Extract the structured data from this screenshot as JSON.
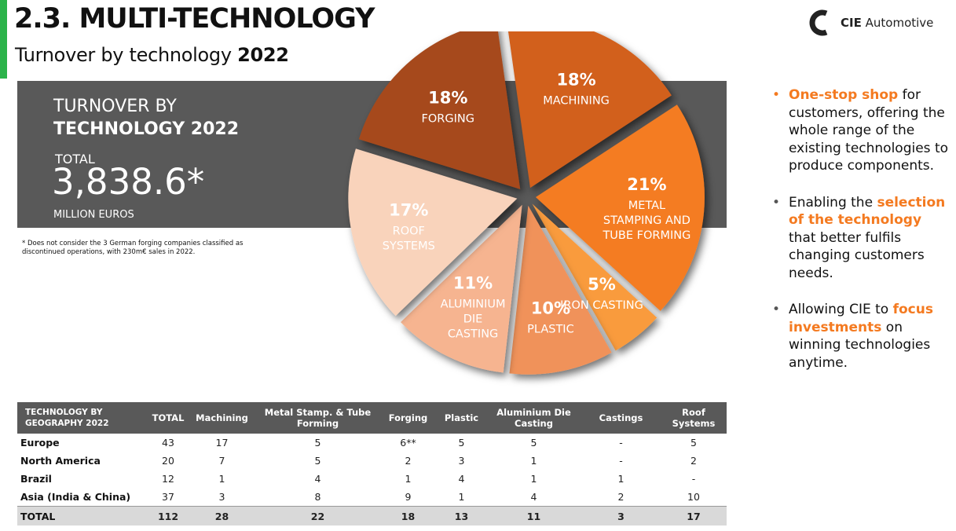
{
  "header": {
    "title": "2.3. MULTI-TECHNOLOGY",
    "subtitle_prefix": "Turnover by technology",
    "subtitle_year": "2022"
  },
  "logo": {
    "brand": "CIE",
    "name": "Automotive"
  },
  "summary": {
    "heading_line1": "TURNOVER BY",
    "heading_line2": "TECHNOLOGY 2022",
    "total_label": "TOTAL",
    "total_value": "3,838.6*",
    "unit": "MILLION EUROS",
    "footnote": "* Does not consider the 3 German forging companies classified as discontinued operations, with 230m€ sales in 2022."
  },
  "chart_data": {
    "type": "pie",
    "slices": [
      {
        "percent_label": "18%",
        "label_lines": [
          "MACHINING"
        ],
        "value": 18,
        "color": "#D2601F"
      },
      {
        "percent_label": "21%",
        "label_lines": [
          "METAL",
          "STAMPING AND",
          "TUBE FORMING"
        ],
        "value": 21,
        "color": "#F47B20"
      },
      {
        "percent_label": "5%",
        "label_lines": [
          "IRON CASTING"
        ],
        "value": 5,
        "color": "#F99B3D"
      },
      {
        "percent_label": "10%",
        "label_lines": [
          "PLASTIC"
        ],
        "value": 10,
        "color": "#F0925A"
      },
      {
        "percent_label": "11%",
        "label_lines": [
          "ALUMINIUM",
          "DIE",
          "CASTING"
        ],
        "value": 11,
        "color": "#F6B490"
      },
      {
        "percent_label": "17%",
        "label_lines": [
          "ROOF",
          "SYSTEMS"
        ],
        "value": 17,
        "color": "#F9D3BB"
      },
      {
        "percent_label": "18%",
        "label_lines": [
          "FORGING"
        ],
        "value": 18,
        "color": "#A64A1C"
      }
    ]
  },
  "bullets": [
    {
      "before": "",
      "highlight": "One-stop shop",
      "after": " for customers, offering the whole range of the existing technologies to produce components."
    },
    {
      "before": "Enabling the ",
      "highlight": "selection of the technology",
      "after": " that better fulfils changing customers needs."
    },
    {
      "before": "Allowing CIE to ",
      "highlight": "focus investments",
      "after": " on winning technologies anytime."
    }
  ],
  "table": {
    "headers": [
      "TECHNOLOGY BY GEOGRAPHY 2022",
      "TOTAL",
      "Machining",
      "Metal Stamp. & Tube Forming",
      "Forging",
      "Plastic",
      "Aluminium Die Casting",
      "Castings",
      "Roof Systems"
    ],
    "rows": [
      [
        "Europe",
        "43",
        "17",
        "5",
        "6**",
        "5",
        "5",
        "-",
        "5"
      ],
      [
        "North America",
        "20",
        "7",
        "5",
        "2",
        "3",
        "1",
        "-",
        "2"
      ],
      [
        "Brazil",
        "12",
        "1",
        "4",
        "1",
        "4",
        "1",
        "1",
        "-"
      ],
      [
        "Asia (India & China)",
        "37",
        "3",
        "8",
        "9",
        "1",
        "4",
        "2",
        "10"
      ]
    ],
    "total_row": [
      "TOTAL",
      "112",
      "28",
      "22",
      "18",
      "13",
      "11",
      "3",
      "17"
    ]
  }
}
